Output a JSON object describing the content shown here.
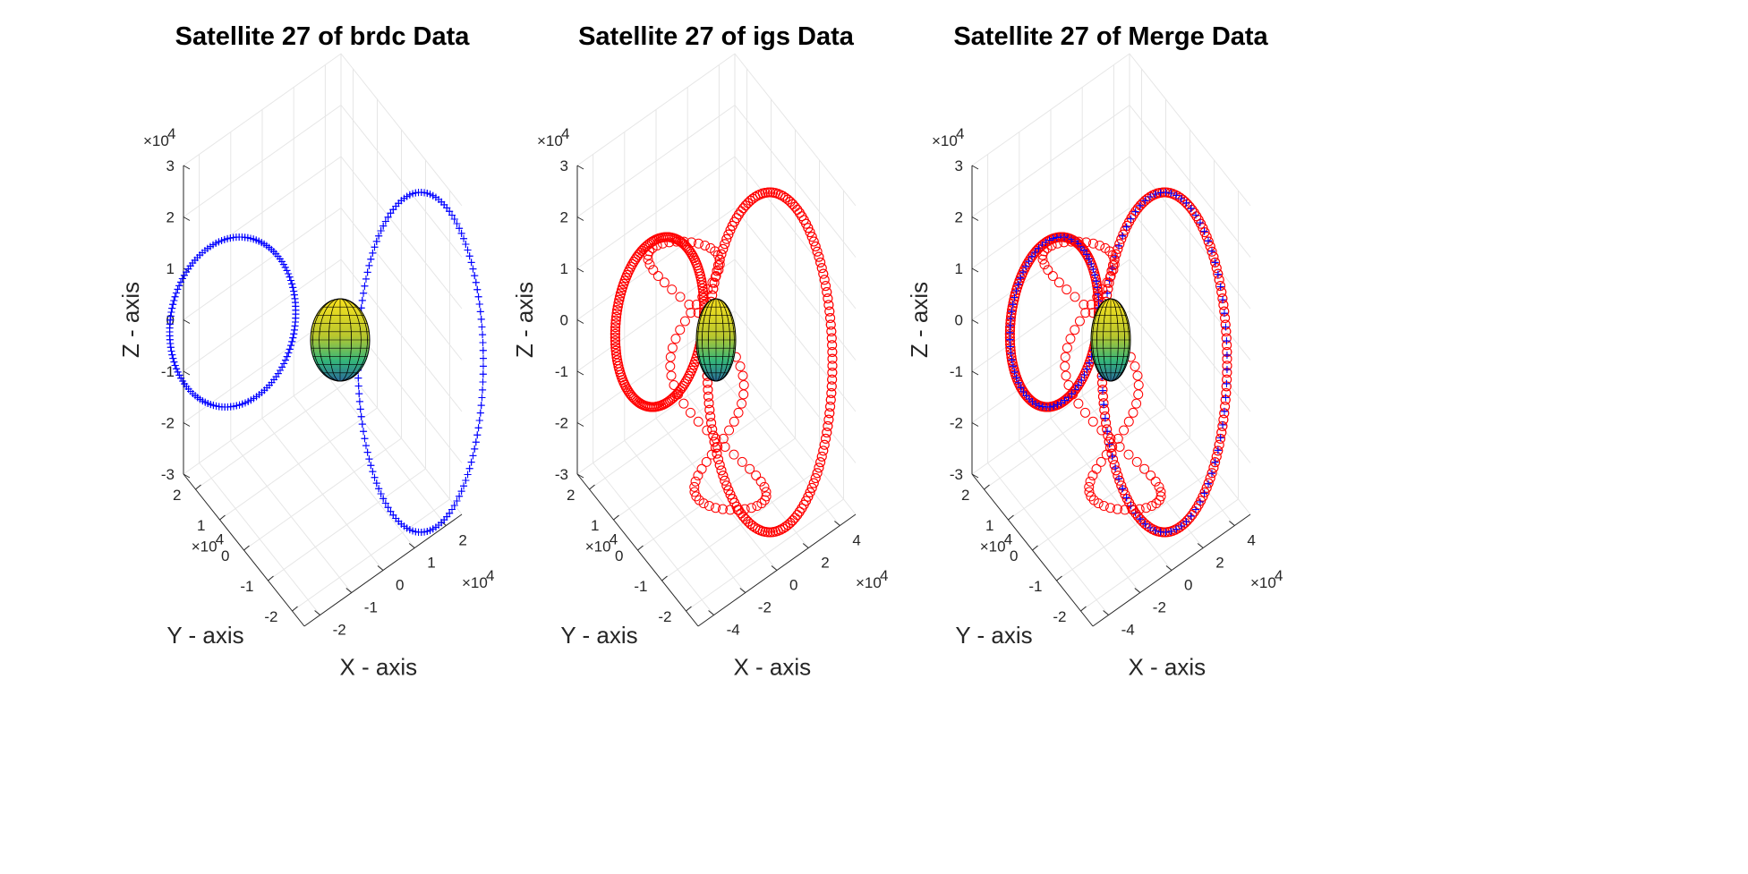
{
  "chart_data": [
    {
      "type": "scatter",
      "title": "Satellite 27 of brdc Data",
      "xlabel": "X - axis",
      "ylabel": "Y - axis",
      "zlabel": "Z - axis",
      "xlim": [
        -2.5,
        2.5
      ],
      "ylim": [
        -2.5,
        2.5
      ],
      "zlim": [
        -3,
        3
      ],
      "xticks": [
        "-2",
        "-1",
        "0",
        "1",
        "2"
      ],
      "yticks": [
        "-2",
        "-1",
        "0",
        "1",
        "2"
      ],
      "zticks": [
        "-3",
        "-2",
        "-1",
        "0",
        "1",
        "2",
        "3"
      ],
      "exponent_label": "×10",
      "exponent": "4",
      "grid": true,
      "series": [
        {
          "marker": "+",
          "color": "#0000ff",
          "points_count": 540
        }
      ],
      "earth": true
    },
    {
      "type": "scatter",
      "title": "Satellite 27 of igs Data",
      "xlabel": "X - axis",
      "ylabel": "Y - axis",
      "zlabel": "Z - axis",
      "xlim": [
        -4.5,
        4.5
      ],
      "ylim": [
        -2.5,
        2.5
      ],
      "zlim": [
        -3,
        3
      ],
      "xticks": [
        "-4",
        "-2",
        "0",
        "2",
        "4"
      ],
      "yticks": [
        "-2",
        "-1",
        "0",
        "1",
        "2"
      ],
      "zticks": [
        "-3",
        "-2",
        "-1",
        "0",
        "1",
        "2",
        "3"
      ],
      "exponent_label": "×10",
      "exponent": "4",
      "grid": true,
      "series": [
        {
          "marker": "o",
          "color": "#ff0000",
          "points_count": 620
        }
      ],
      "earth": true
    },
    {
      "type": "scatter",
      "title": "Satellite 27 of Merge Data",
      "xlabel": "X - axis",
      "ylabel": "Y - axis",
      "zlabel": "Z - axis",
      "xlim": [
        -4.5,
        4.5
      ],
      "ylim": [
        -2.5,
        2.5
      ],
      "zlim": [
        -3,
        3
      ],
      "xticks": [
        "-4",
        "-2",
        "0",
        "2",
        "4"
      ],
      "yticks": [
        "-2",
        "-1",
        "0",
        "1",
        "2"
      ],
      "zticks": [
        "-3",
        "-2",
        "-1",
        "0",
        "1",
        "2",
        "3"
      ],
      "exponent_label": "×10",
      "exponent": "4",
      "grid": true,
      "series": [
        {
          "marker": "o",
          "color": "#ff0000",
          "points_count": 620
        },
        {
          "marker": "+",
          "color": "#0000ff",
          "points_count": 300
        }
      ],
      "earth": true
    }
  ]
}
